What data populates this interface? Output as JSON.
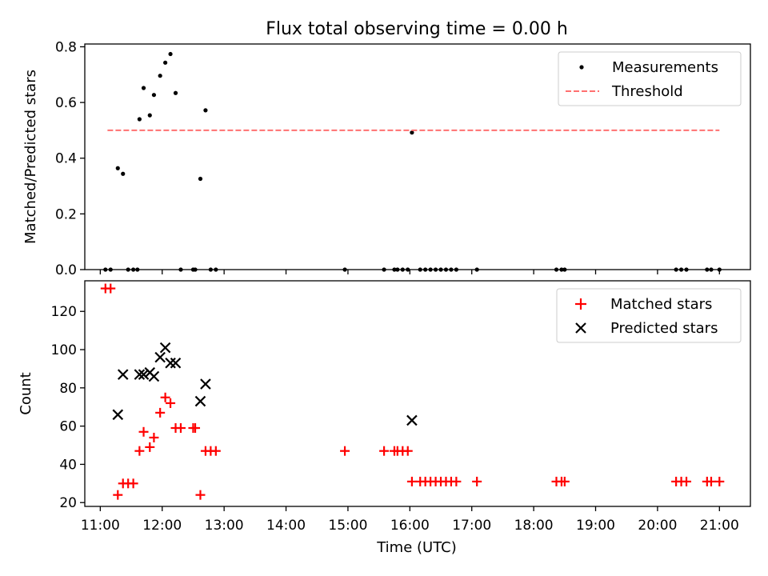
{
  "title": "Flux total observing time = 0.00 h",
  "xlabel": "Time (UTC)",
  "colors": {
    "measurements": "#000000",
    "threshold": "#ff7070",
    "matched": "#ff0000",
    "predicted": "#000000"
  },
  "chart_data": [
    {
      "type": "scatter",
      "ylabel": "Matched/Predicted stars",
      "xlim": [
        "10:45",
        "21:30"
      ],
      "ylim": [
        0,
        0.81
      ],
      "yticks": [
        0.0,
        0.2,
        0.4,
        0.6,
        0.8
      ],
      "ytick_labels": [
        "0.0",
        "0.2",
        "0.4",
        "0.6",
        "0.8"
      ],
      "grid": false,
      "legend_position": "top-right",
      "series": [
        {
          "name": "Measurements",
          "marker": "dot",
          "points": [
            {
              "x": "11:05",
              "y": 0
            },
            {
              "x": "11:10",
              "y": 0
            },
            {
              "x": "11:17",
              "y": 0.364
            },
            {
              "x": "11:22",
              "y": 0.344
            },
            {
              "x": "11:27",
              "y": 0
            },
            {
              "x": "11:32",
              "y": 0
            },
            {
              "x": "11:36",
              "y": 0
            },
            {
              "x": "11:38",
              "y": 0.54
            },
            {
              "x": "11:42",
              "y": 0.652
            },
            {
              "x": "11:48",
              "y": 0.554
            },
            {
              "x": "11:52",
              "y": 0.627
            },
            {
              "x": "11:58",
              "y": 0.696
            },
            {
              "x": "12:03",
              "y": 0.743
            },
            {
              "x": "12:08",
              "y": 0.774
            },
            {
              "x": "12:13",
              "y": 0.634
            },
            {
              "x": "12:18",
              "y": 0
            },
            {
              "x": "12:30",
              "y": 0
            },
            {
              "x": "12:32",
              "y": 0
            },
            {
              "x": "12:37",
              "y": 0.326
            },
            {
              "x": "12:42",
              "y": 0.572
            },
            {
              "x": "12:47",
              "y": 0
            },
            {
              "x": "12:52",
              "y": 0
            },
            {
              "x": "14:57",
              "y": 0
            },
            {
              "x": "15:35",
              "y": 0
            },
            {
              "x": "15:45",
              "y": 0
            },
            {
              "x": "15:48",
              "y": 0
            },
            {
              "x": "15:53",
              "y": 0
            },
            {
              "x": "15:58",
              "y": 0
            },
            {
              "x": "16:02",
              "y": 0.492
            },
            {
              "x": "16:10",
              "y": 0
            },
            {
              "x": "16:15",
              "y": 0
            },
            {
              "x": "16:20",
              "y": 0
            },
            {
              "x": "16:25",
              "y": 0
            },
            {
              "x": "16:30",
              "y": 0
            },
            {
              "x": "16:35",
              "y": 0
            },
            {
              "x": "16:40",
              "y": 0
            },
            {
              "x": "16:45",
              "y": 0
            },
            {
              "x": "17:05",
              "y": 0
            },
            {
              "x": "18:22",
              "y": 0
            },
            {
              "x": "18:27",
              "y": 0
            },
            {
              "x": "18:30",
              "y": 0
            },
            {
              "x": "20:18",
              "y": 0
            },
            {
              "x": "20:23",
              "y": 0
            },
            {
              "x": "20:28",
              "y": 0
            },
            {
              "x": "20:48",
              "y": 0
            },
            {
              "x": "20:52",
              "y": 0
            },
            {
              "x": "21:00",
              "y": 0
            }
          ]
        },
        {
          "name": "Threshold",
          "style": "dashed-line",
          "points": [
            {
              "x": "11:07",
              "y": 0.5
            },
            {
              "x": "21:00",
              "y": 0.5
            }
          ]
        }
      ]
    },
    {
      "type": "scatter",
      "ylabel": "Count",
      "xlabel": "Time (UTC)",
      "xlim": [
        "10:45",
        "21:30"
      ],
      "ylim": [
        18,
        136
      ],
      "yticks": [
        20,
        40,
        60,
        80,
        100,
        120
      ],
      "ytick_labels": [
        "20",
        "40",
        "60",
        "80",
        "100",
        "120"
      ],
      "xticks": [
        "11:00",
        "12:00",
        "13:00",
        "14:00",
        "15:00",
        "16:00",
        "17:00",
        "18:00",
        "19:00",
        "20:00",
        "21:00"
      ],
      "xtick_labels": [
        "11:00",
        "12:00",
        "13:00",
        "14:00",
        "15:00",
        "16:00",
        "17:00",
        "18:00",
        "19:00",
        "20:00",
        "21:00"
      ],
      "grid": false,
      "legend_position": "top-right",
      "series": [
        {
          "name": "Matched stars",
          "marker": "plus",
          "points": [
            {
              "x": "11:05",
              "y": 132
            },
            {
              "x": "11:10",
              "y": 132
            },
            {
              "x": "11:17",
              "y": 24
            },
            {
              "x": "11:22",
              "y": 30
            },
            {
              "x": "11:27",
              "y": 30
            },
            {
              "x": "11:32",
              "y": 30
            },
            {
              "x": "11:38",
              "y": 47
            },
            {
              "x": "11:42",
              "y": 57
            },
            {
              "x": "11:48",
              "y": 49
            },
            {
              "x": "11:52",
              "y": 54
            },
            {
              "x": "11:58",
              "y": 67
            },
            {
              "x": "12:03",
              "y": 75
            },
            {
              "x": "12:08",
              "y": 72
            },
            {
              "x": "12:13",
              "y": 59
            },
            {
              "x": "12:18",
              "y": 59
            },
            {
              "x": "12:30",
              "y": 59
            },
            {
              "x": "12:32",
              "y": 59
            },
            {
              "x": "12:37",
              "y": 24
            },
            {
              "x": "12:42",
              "y": 47
            },
            {
              "x": "12:47",
              "y": 47
            },
            {
              "x": "12:52",
              "y": 47
            },
            {
              "x": "14:57",
              "y": 47
            },
            {
              "x": "15:35",
              "y": 47
            },
            {
              "x": "15:45",
              "y": 47
            },
            {
              "x": "15:48",
              "y": 47
            },
            {
              "x": "15:53",
              "y": 47
            },
            {
              "x": "15:58",
              "y": 47
            },
            {
              "x": "16:02",
              "y": 31
            },
            {
              "x": "16:10",
              "y": 31
            },
            {
              "x": "16:15",
              "y": 31
            },
            {
              "x": "16:20",
              "y": 31
            },
            {
              "x": "16:25",
              "y": 31
            },
            {
              "x": "16:30",
              "y": 31
            },
            {
              "x": "16:35",
              "y": 31
            },
            {
              "x": "16:40",
              "y": 31
            },
            {
              "x": "16:45",
              "y": 31
            },
            {
              "x": "17:05",
              "y": 31
            },
            {
              "x": "18:22",
              "y": 31
            },
            {
              "x": "18:27",
              "y": 31
            },
            {
              "x": "18:30",
              "y": 31
            },
            {
              "x": "20:18",
              "y": 31
            },
            {
              "x": "20:23",
              "y": 31
            },
            {
              "x": "20:28",
              "y": 31
            },
            {
              "x": "20:48",
              "y": 31
            },
            {
              "x": "20:52",
              "y": 31
            },
            {
              "x": "21:00",
              "y": 31
            }
          ]
        },
        {
          "name": "Predicted stars",
          "marker": "x",
          "points": [
            {
              "x": "11:17",
              "y": 66
            },
            {
              "x": "11:22",
              "y": 87
            },
            {
              "x": "11:38",
              "y": 87
            },
            {
              "x": "11:42",
              "y": 87
            },
            {
              "x": "11:48",
              "y": 88
            },
            {
              "x": "11:52",
              "y": 86
            },
            {
              "x": "11:58",
              "y": 96
            },
            {
              "x": "12:03",
              "y": 101
            },
            {
              "x": "12:08",
              "y": 93
            },
            {
              "x": "12:13",
              "y": 93
            },
            {
              "x": "12:37",
              "y": 73
            },
            {
              "x": "12:42",
              "y": 82
            },
            {
              "x": "16:02",
              "y": 63
            }
          ]
        }
      ]
    }
  ]
}
